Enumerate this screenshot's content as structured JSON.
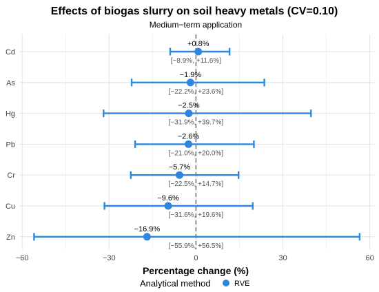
{
  "chart_data": {
    "type": "forest",
    "title": "Effects of biogas slurry on soil heavy metals (CV=0.10)",
    "subtitle": "Medium−term application",
    "xlabel": "Percentage change (%)",
    "xlim": [
      -61,
      62
    ],
    "xticks": [
      -60,
      -30,
      0,
      30,
      60
    ],
    "xtick_labels": [
      "−60",
      "−30",
      "0",
      "30",
      "60"
    ],
    "reference_line": 0,
    "grid": true,
    "legend": {
      "position": "bottom",
      "title": "Analytical method",
      "entries": [
        {
          "label": "RVE",
          "color": "#2e86de"
        }
      ]
    },
    "series_color": "#2e86de",
    "categories": [
      "Cd",
      "As",
      "Hg",
      "Pb",
      "Cr",
      "Cu",
      "Zn"
    ],
    "points": [
      {
        "metal": "Cd",
        "estimate": 0.8,
        "lower": -8.9,
        "upper": 11.6,
        "label": "+0.8%",
        "ci_label": "[−8.9%, +11.6%]"
      },
      {
        "metal": "As",
        "estimate": -1.9,
        "lower": -22.2,
        "upper": 23.6,
        "label": "−1.9%",
        "ci_label": "[−22.2%, +23.6%]"
      },
      {
        "metal": "Hg",
        "estimate": -2.5,
        "lower": -31.9,
        "upper": 39.7,
        "label": "−2.5%",
        "ci_label": "[−31.9%, +39.7%]"
      },
      {
        "metal": "Pb",
        "estimate": -2.6,
        "lower": -21.0,
        "upper": 20.0,
        "label": "−2.6%",
        "ci_label": "[−21.0%, +20.0%]"
      },
      {
        "metal": "Cr",
        "estimate": -5.7,
        "lower": -22.5,
        "upper": 14.7,
        "label": "−5.7%",
        "ci_label": "[−22.5%, +14.7%]"
      },
      {
        "metal": "Cu",
        "estimate": -9.6,
        "lower": -31.6,
        "upper": 19.6,
        "label": "−9.6%",
        "ci_label": "[−31.6%, +19.6%]"
      },
      {
        "metal": "Zn",
        "estimate": -16.9,
        "lower": -55.9,
        "upper": 56.5,
        "label": "−16.9%",
        "ci_label": "[−55.9%, +56.5%]"
      }
    ]
  }
}
